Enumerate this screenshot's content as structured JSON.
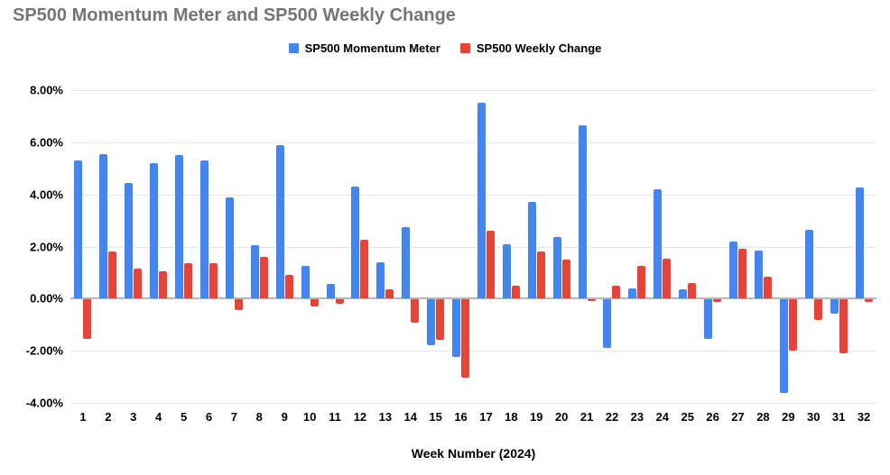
{
  "chart_data": {
    "type": "bar",
    "title": "SP500 Momentum Meter and SP500 Weekly Change",
    "xlabel": "Week Number (2024)",
    "ylabel": "",
    "categories": [
      1,
      2,
      3,
      4,
      5,
      6,
      7,
      8,
      9,
      10,
      11,
      12,
      13,
      14,
      15,
      16,
      17,
      18,
      19,
      20,
      21,
      22,
      23,
      24,
      25,
      26,
      27,
      28,
      29,
      30,
      31,
      32
    ],
    "series": [
      {
        "name": "SP500 Momentum Meter",
        "color": "#4285F4",
        "values": [
          5.3,
          5.55,
          4.45,
          5.2,
          5.5,
          5.3,
          3.9,
          2.05,
          5.9,
          1.25,
          0.55,
          4.3,
          1.4,
          2.75,
          -1.75,
          -2.2,
          7.5,
          2.1,
          3.7,
          2.35,
          6.65,
          -1.85,
          0.4,
          4.2,
          0.35,
          -1.5,
          2.2,
          1.85,
          -3.6,
          2.65,
          -0.55,
          4.25
        ]
      },
      {
        "name": "SP500 Weekly Change",
        "color": "#EA4335",
        "values": [
          -1.5,
          1.8,
          1.15,
          1.05,
          1.35,
          1.35,
          -0.4,
          1.6,
          0.9,
          -0.25,
          -0.15,
          2.25,
          0.35,
          -0.9,
          -1.55,
          -3.0,
          2.6,
          0.5,
          1.8,
          1.5,
          -0.05,
          0.5,
          1.25,
          1.55,
          0.6,
          -0.1,
          1.9,
          0.85,
          -1.95,
          -0.8,
          -2.05,
          -0.1
        ]
      }
    ],
    "ylim": [
      -4,
      8
    ],
    "yticks": [
      {
        "value": 8,
        "label": "8.00%"
      },
      {
        "value": 6,
        "label": "6.00%"
      },
      {
        "value": 4,
        "label": "4.00%"
      },
      {
        "value": 2,
        "label": "2.00%"
      },
      {
        "value": 0,
        "label": "0.00%"
      },
      {
        "value": -2,
        "label": "-2.00%"
      },
      {
        "value": -4,
        "label": "-4.00%"
      }
    ],
    "grid": true,
    "legend_position": "top",
    "colors": {
      "title_text": "#757575",
      "axis_text": "#000000",
      "gridline": "#e8e8e8",
      "zero_line": "#b7b7b7",
      "background": "#ffffff"
    }
  }
}
